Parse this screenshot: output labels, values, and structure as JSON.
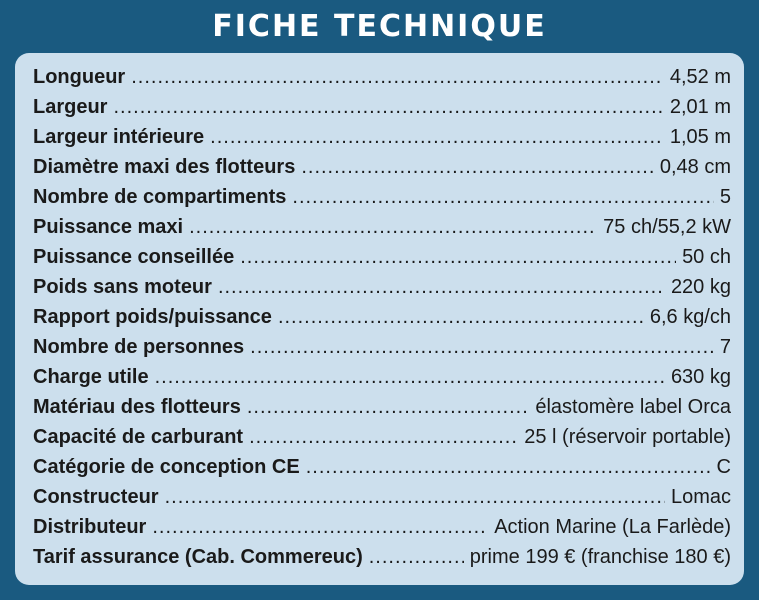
{
  "header": {
    "title": "Fiche technique"
  },
  "specs": [
    {
      "label": "Longueur",
      "value": "4,52 m"
    },
    {
      "label": "Largeur",
      "value": "2,01 m"
    },
    {
      "label": "Largeur intérieure",
      "value": "1,05 m"
    },
    {
      "label": "Diamètre maxi des flotteurs",
      "value": "0,48 cm"
    },
    {
      "label": "Nombre de compartiments",
      "value": "5"
    },
    {
      "label": "Puissance maxi",
      "value": "75 ch/55,2 kW"
    },
    {
      "label": "Puissance conseillée",
      "value": "50 ch"
    },
    {
      "label": "Poids sans moteur",
      "value": "220 kg"
    },
    {
      "label": "Rapport poids/puissance",
      "value": "6,6 kg/ch"
    },
    {
      "label": "Nombre de personnes",
      "value": "7"
    },
    {
      "label": "Charge utile",
      "value": "630 kg"
    },
    {
      "label": "Matériau des flotteurs",
      "value": "élastomère label Orca"
    },
    {
      "label": "Capacité de carburant",
      "value": "25 l (réservoir portable)"
    },
    {
      "label": "Catégorie de conception CE",
      "value": "C"
    },
    {
      "label": "Constructeur",
      "value": "Lomac"
    },
    {
      "label": "Distributeur",
      "value": "Action Marine (La Farlède)"
    },
    {
      "label": "Tarif assurance (Cab. Commereuc)",
      "value": "prime 199 € (franchise 180 €)"
    }
  ],
  "colors": {
    "frame": "#1a5a80",
    "panel": "#ccdfed",
    "text": "#1a1a1a",
    "title": "#ffffff"
  }
}
